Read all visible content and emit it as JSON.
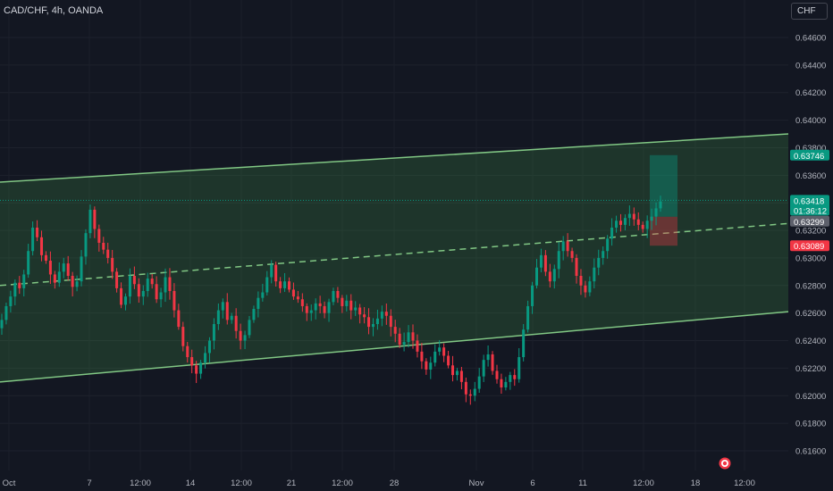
{
  "header": {
    "title": "CAD/CHF, 4h, OANDA",
    "currency": "CHF"
  },
  "chart_data": {
    "type": "candlestick",
    "symbol": "CAD/CHF",
    "timeframe": "4h",
    "source": "OANDA",
    "y_axis": {
      "ticks": [
        "0.64600",
        "0.64400",
        "0.64200",
        "0.64000",
        "0.63800",
        "0.63600",
        "0.63400",
        "0.63200",
        "0.63000",
        "0.62800",
        "0.62600",
        "0.62400",
        "0.62200",
        "0.62000",
        "0.61800",
        "0.61600"
      ],
      "range": [
        0.615,
        0.6478
      ]
    },
    "x_axis": {
      "ticks": [
        "Oct",
        "7",
        "12:00",
        "14",
        "12:00",
        "21",
        "12:00",
        "28",
        "Nov",
        "6",
        "11",
        "12:00",
        "18",
        "12:00"
      ]
    },
    "price_labels": {
      "take_profit": "0.63746",
      "current_price": "0.63418",
      "countdown": "01:36:12",
      "entry": "0.63299",
      "stop_loss": "0.63089"
    },
    "channel": {
      "upper": {
        "start": 0.6355,
        "end": 0.639
      },
      "mid": {
        "start": 0.628,
        "end": 0.6325
      },
      "lower": {
        "start": 0.621,
        "end": 0.6261
      }
    },
    "position": {
      "entry": 0.63299,
      "take_profit": 0.63746,
      "stop_loss": 0.63089
    },
    "price_path": [
      0.6255,
      0.6265,
      0.6272,
      0.6282,
      0.6278,
      0.6288,
      0.6305,
      0.6322,
      0.6315,
      0.6302,
      0.6298,
      0.6288,
      0.6282,
      0.629,
      0.6296,
      0.6287,
      0.6279,
      0.6283,
      0.6301,
      0.6318,
      0.6335,
      0.6321,
      0.6311,
      0.6306,
      0.63,
      0.629,
      0.6278,
      0.6266,
      0.6272,
      0.6287,
      0.6281,
      0.6272,
      0.6276,
      0.6285,
      0.6281,
      0.627,
      0.6275,
      0.6286,
      0.6276,
      0.6262,
      0.625,
      0.6236,
      0.6228,
      0.6222,
      0.6216,
      0.6224,
      0.6231,
      0.624,
      0.6252,
      0.6262,
      0.6268,
      0.6255,
      0.6258,
      0.6247,
      0.624,
      0.6244,
      0.6255,
      0.6263,
      0.6271,
      0.6275,
      0.6286,
      0.6295,
      0.6283,
      0.6278,
      0.6283,
      0.6277,
      0.6272,
      0.627,
      0.6265,
      0.626,
      0.6262,
      0.6267,
      0.6265,
      0.626,
      0.6268,
      0.6276,
      0.6271,
      0.6265,
      0.6269,
      0.6262,
      0.6264,
      0.6259,
      0.6257,
      0.625,
      0.6252,
      0.6256,
      0.6261,
      0.6258,
      0.625,
      0.6245,
      0.6237,
      0.6239,
      0.6246,
      0.624,
      0.6232,
      0.6225,
      0.6219,
      0.6224,
      0.6232,
      0.6235,
      0.6229,
      0.6222,
      0.6215,
      0.6218,
      0.621,
      0.6201,
      0.62,
      0.6205,
      0.6214,
      0.6226,
      0.623,
      0.6218,
      0.6212,
      0.6206,
      0.621,
      0.6215,
      0.6212,
      0.6228,
      0.6248,
      0.6265,
      0.628,
      0.6293,
      0.6302,
      0.629,
      0.6283,
      0.6292,
      0.6305,
      0.6312,
      0.6305,
      0.63,
      0.6287,
      0.628,
      0.6275,
      0.6283,
      0.6293,
      0.63,
      0.6305,
      0.6314,
      0.6322,
      0.6327,
      0.6324,
      0.6329,
      0.6332,
      0.6328,
      0.6324,
      0.6321,
      0.6327,
      0.633,
      0.6336,
      0.6341
    ]
  }
}
